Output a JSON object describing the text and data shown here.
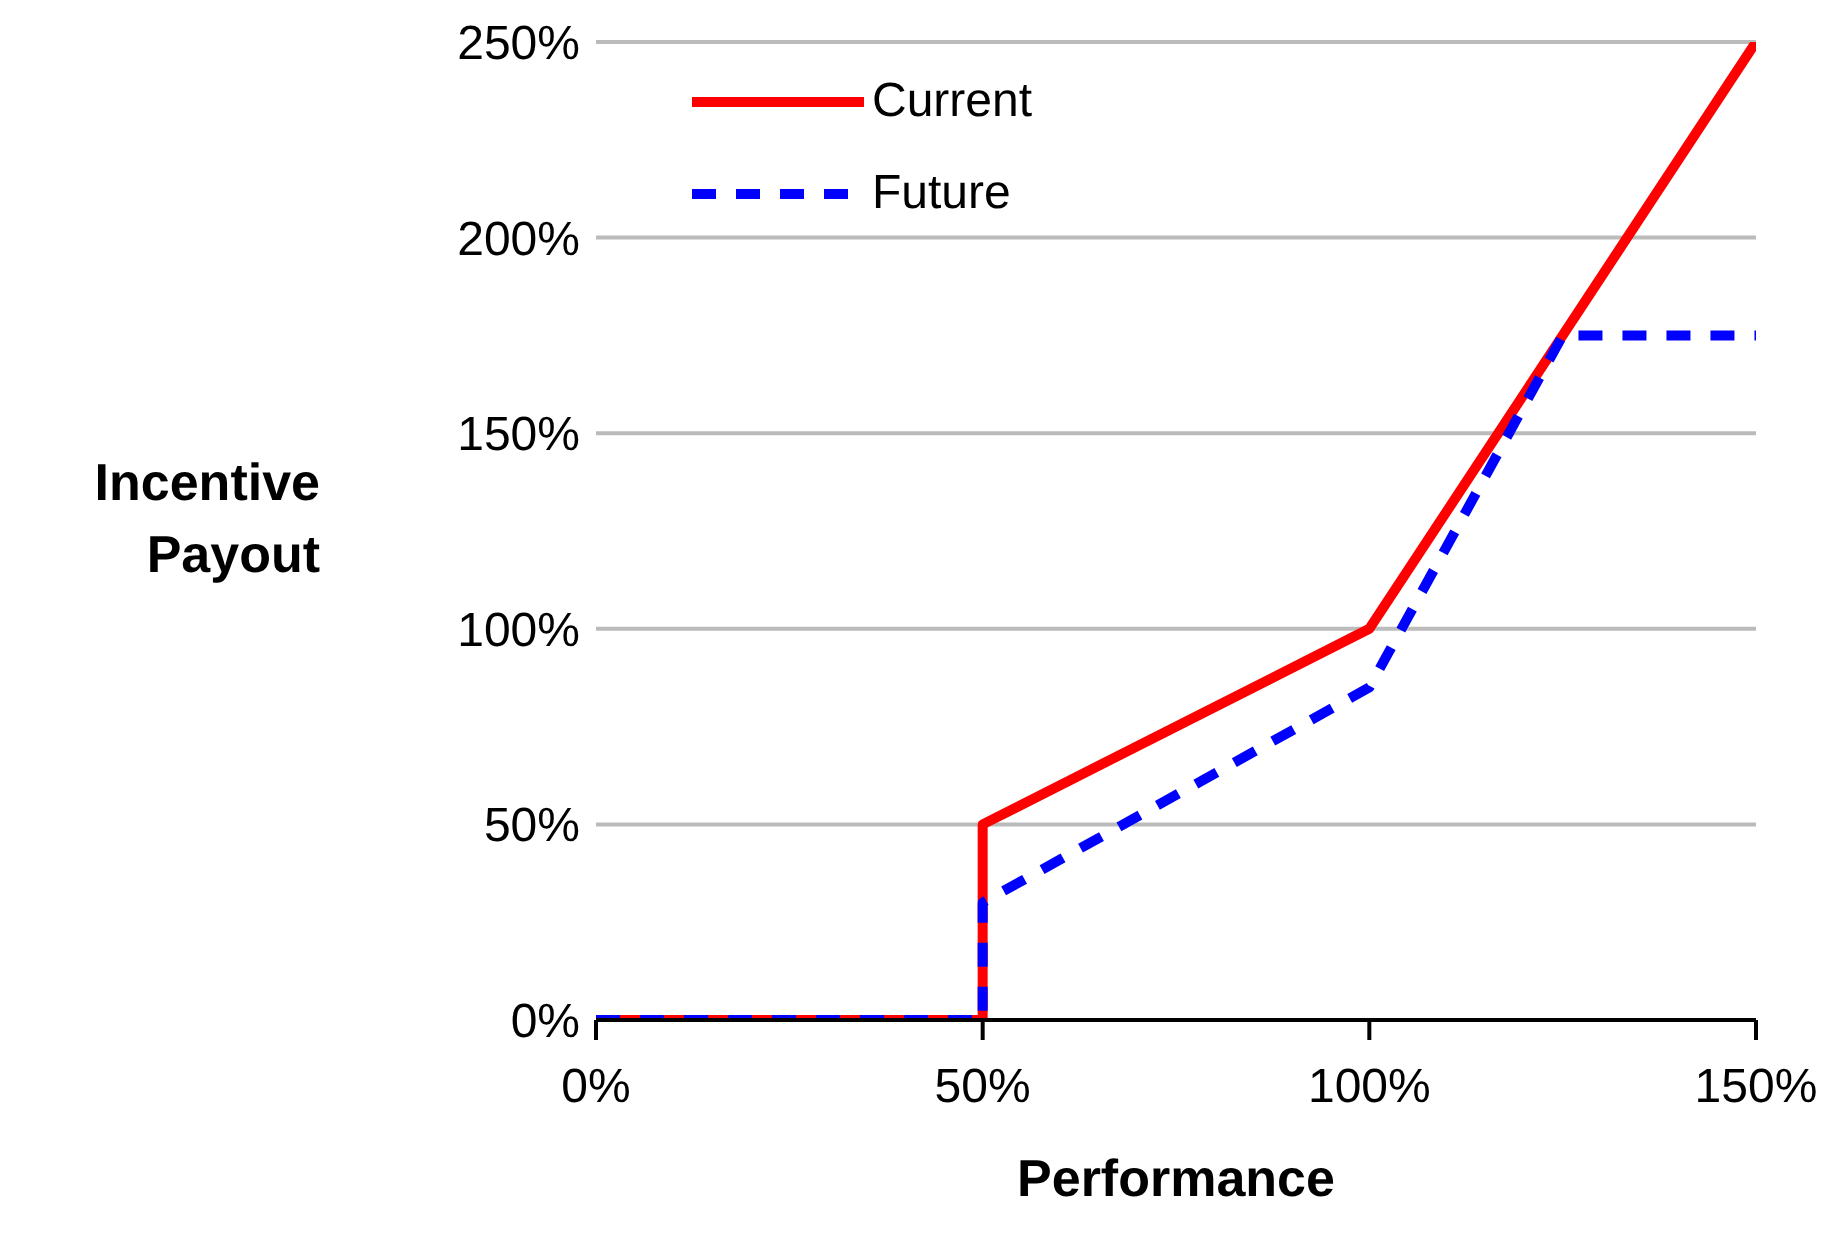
{
  "chart_data": {
    "type": "line",
    "xlabel": "Performance",
    "ylabel": "Incentive Payout",
    "xlim": [
      0,
      150
    ],
    "xticks": [
      {
        "value": 0,
        "label": "0%"
      },
      {
        "value": 50,
        "label": "50%"
      },
      {
        "value": 100,
        "label": "100%"
      },
      {
        "value": 150,
        "label": "150%"
      }
    ],
    "ylim": [
      0,
      250
    ],
    "yticks": [
      {
        "value": 0,
        "label": "0%"
      },
      {
        "value": 50,
        "label": "50%"
      },
      {
        "value": 100,
        "label": "100%"
      },
      {
        "value": 150,
        "label": "150%"
      },
      {
        "value": 200,
        "label": "200%"
      },
      {
        "value": 250,
        "label": "250%"
      }
    ],
    "grid": "y",
    "legend": "top left",
    "marker": "none",
    "series": [
      {
        "name": "Current",
        "color": "#ff0000",
        "line_style": "solid",
        "x": [
          0,
          50,
          50,
          100,
          150
        ],
        "values": [
          0,
          0,
          50,
          100,
          250
        ]
      },
      {
        "name": "Future",
        "color": "#0000ff",
        "line_style": "dashed",
        "x": [
          0,
          50,
          50,
          100,
          125,
          150
        ],
        "values": [
          0,
          0,
          30,
          85,
          175,
          175
        ]
      }
    ]
  }
}
